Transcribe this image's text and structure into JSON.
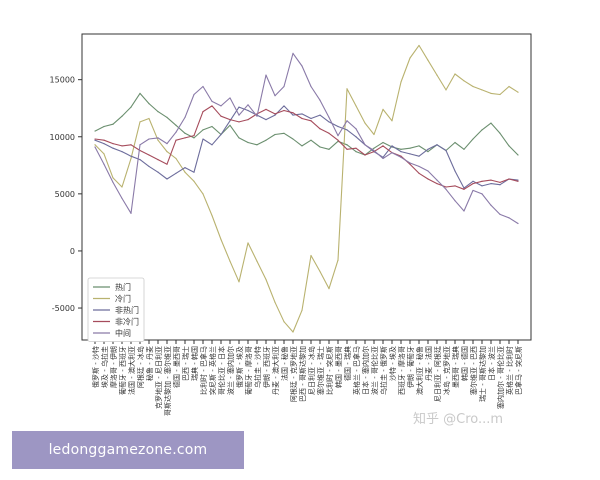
{
  "chart_data": {
    "type": "line",
    "title": "",
    "xlabel": "",
    "ylabel": "",
    "ylim": [
      -7800,
      19000
    ],
    "yticks": [
      -5000,
      0,
      5000,
      10000,
      15000
    ],
    "grid": false,
    "legend_position": "lower-left",
    "categories": [
      "俄罗斯 - 沙特",
      "埃及 - 乌拉圭",
      "摩洛哥 - 伊朗",
      "葡萄牙 - 西班牙",
      "法国 - 澳大利亚",
      "阿根廷 - 冰岛",
      "秘鲁 - 丹麦",
      "克罗地亚 - 尼日利亚",
      "哥斯达黎加 - 塞尔维亚",
      "德国 - 墨西哥",
      "巴西 - 瑞士",
      "瑞典 - 韩国",
      "比利时 - 巴拿马",
      "突尼斯 - 英格兰",
      "哥伦比亚 - 日本",
      "波兰 - 塞内加尔",
      "俄罗斯 - 埃及",
      "葡萄牙 - 摩洛哥",
      "乌拉圭 - 沙特",
      "伊朗 - 西班牙",
      "丹麦 - 澳大利亚",
      "法国 - 秘鲁",
      "阿根廷 - 克罗地亚",
      "巴西 - 哥斯达黎加",
      "尼日利亚 - 冰岛",
      "塞尔维亚 - 瑞士",
      "比利时 - 突尼斯",
      "韩国 - 墨西哥",
      "德国 - 瑞典",
      "英格兰 - 巴拿马",
      "日本 - 塞内加尔",
      "波兰 - 哥伦比亚",
      "乌拉圭 - 俄罗斯",
      "沙特 - 埃及",
      "西班牙 - 摩洛哥",
      "伊朗 - 葡萄牙",
      "澳大利亚 - 秘鲁",
      "丹麦 - 法国",
      "尼日利亚 - 阿根廷",
      "冰岛 - 克罗地亚",
      "墨西哥 - 瑞典",
      "韩国 - 德国",
      "塞尔维亚 - 巴西",
      "瑞士 - 哥斯达黎加",
      "日本 - 波兰",
      "塞内加尔 - 哥伦比亚",
      "英格兰 - 比利时",
      "巴拿马 - 突尼斯"
    ],
    "series": [
      {
        "name": "热门",
        "color": "#6b8f6f",
        "values": [
          10500,
          10900,
          11100,
          11800,
          12600,
          13800,
          12900,
          12200,
          11700,
          11000,
          10300,
          9900,
          10600,
          10900,
          10200,
          11000,
          9900,
          9500,
          9300,
          9700,
          10200,
          10300,
          9800,
          9200,
          9700,
          9100,
          8900,
          9600,
          9300,
          8700,
          8400,
          9000,
          9500,
          9100,
          8900,
          9000,
          9200,
          8700,
          9300,
          8800,
          9500,
          8900,
          9800,
          10600,
          11200,
          10300,
          9200,
          8400
        ]
      },
      {
        "name": "冷门",
        "color": "#b9b26f",
        "values": [
          9300,
          8500,
          6400,
          5600,
          8100,
          11300,
          11600,
          9700,
          8700,
          8100,
          6900,
          6100,
          5000,
          3100,
          1000,
          -900,
          -2700,
          700,
          -900,
          -2500,
          -4500,
          -6200,
          -7100,
          -5200,
          -400,
          -1800,
          -3300,
          -800,
          14200,
          12700,
          11200,
          10200,
          12400,
          11400,
          14800,
          16900,
          18000,
          16700,
          15400,
          14100,
          15500,
          14900,
          14400,
          14100,
          13800,
          13700,
          14400,
          13900
        ]
      },
      {
        "name": "非热门",
        "color": "#6d6d9c",
        "values": [
          9700,
          9400,
          9000,
          8700,
          8300,
          8000,
          7400,
          6900,
          6300,
          6800,
          7300,
          6900,
          9800,
          9300,
          10200,
          11400,
          12600,
          12300,
          11900,
          11500,
          11900,
          12700,
          11900,
          12000,
          11600,
          11900,
          11300,
          10900,
          10600,
          10000,
          9300,
          8700,
          8200,
          9200,
          8700,
          8500,
          8300,
          8900,
          9300,
          8800,
          7000,
          5500,
          6100,
          5700,
          5900,
          5800,
          6300,
          6200
        ]
      },
      {
        "name": "非冷门",
        "color": "#a64c5c",
        "values": [
          9800,
          9700,
          9400,
          9200,
          9300,
          8800,
          8400,
          8000,
          7600,
          9700,
          9900,
          10100,
          12200,
          12700,
          11800,
          11500,
          11300,
          11500,
          12000,
          12400,
          12000,
          12300,
          12100,
          11600,
          11400,
          10700,
          10300,
          9700,
          8900,
          9000,
          8400,
          8700,
          9200,
          8600,
          8300,
          7600,
          6800,
          6300,
          5900,
          5600,
          5700,
          5400,
          5900,
          6100,
          6200,
          6000,
          6300,
          6100
        ]
      },
      {
        "name": "中间",
        "color": "#8a7aa8",
        "values": [
          9100,
          7600,
          6000,
          4600,
          3300,
          9300,
          9800,
          9900,
          9400,
          10400,
          11700,
          13700,
          14400,
          13100,
          12700,
          13400,
          11900,
          12800,
          11800,
          15400,
          13600,
          14400,
          17300,
          16200,
          14400,
          13200,
          11700,
          10100,
          11400,
          10700,
          9300,
          8800,
          8100,
          8600,
          8200,
          7700,
          7400,
          7000,
          6200,
          5400,
          4400,
          3500,
          5300,
          5000,
          4000,
          3200,
          2900,
          2400
        ]
      }
    ]
  },
  "watermark_text": "知乎 @Cro...m",
  "footer": {
    "text": "ledonggamezone.com",
    "background": "#9d96c3",
    "text_color": "#ffffff"
  }
}
